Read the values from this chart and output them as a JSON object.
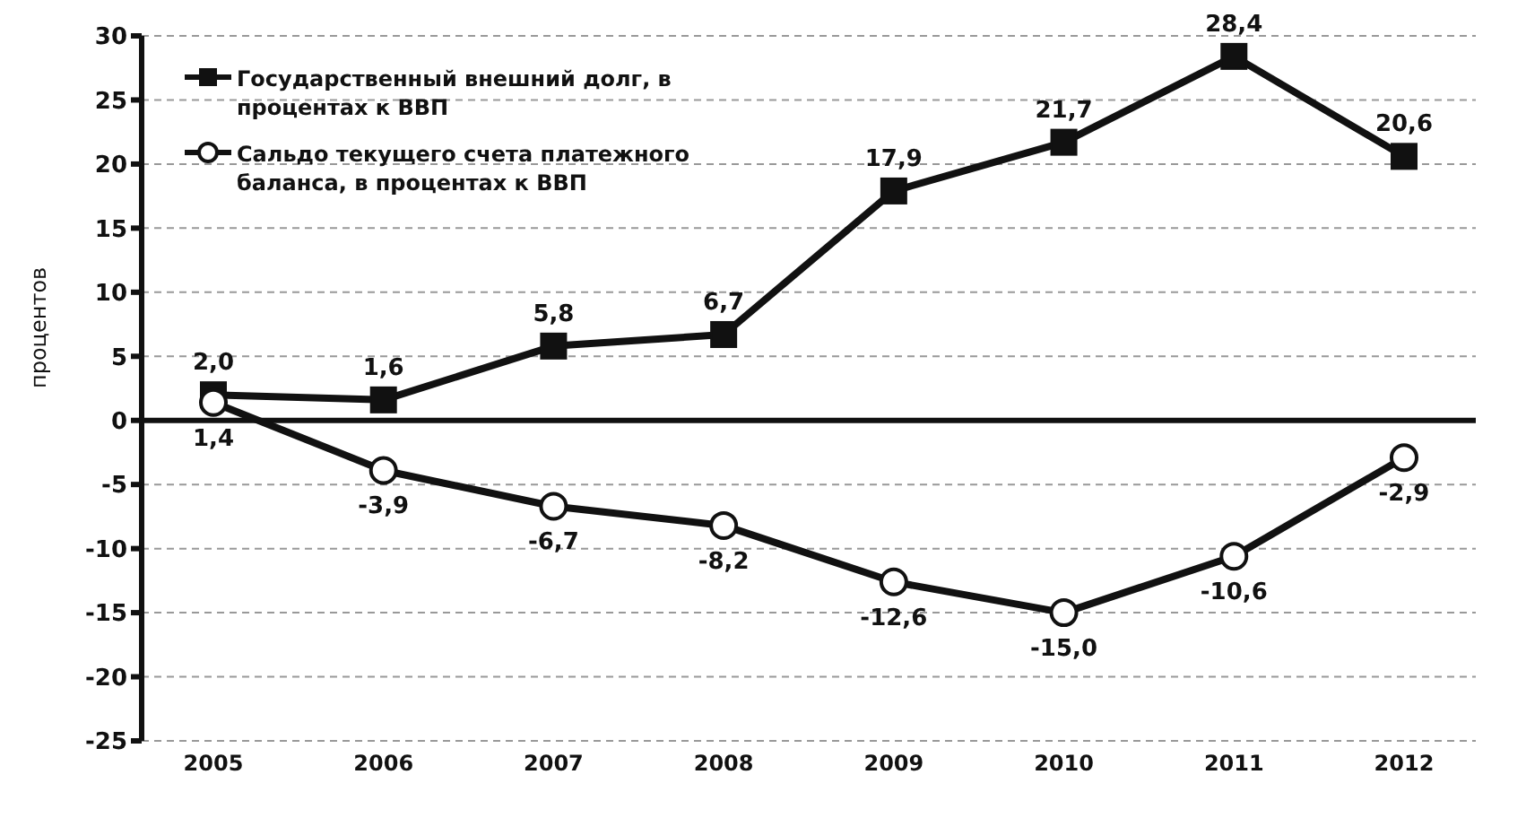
{
  "chart_data": {
    "type": "line",
    "ylabel": "процентов",
    "categories": [
      "2005",
      "2006",
      "2007",
      "2008",
      "2009",
      "2010",
      "2011",
      "2012"
    ],
    "series": [
      {
        "name": "Государственный внешний долг, в процентах к ВВП",
        "color": "#111111",
        "marker": "square",
        "values": [
          2.0,
          1.6,
          5.8,
          6.7,
          17.9,
          21.7,
          28.4,
          20.6
        ],
        "value_labels": [
          "2,0",
          "1,6",
          "5,8",
          "6,7",
          "17,9",
          "21,7",
          "28,4",
          "20,6"
        ]
      },
      {
        "name": "Сальдо текущего счета платежного баланса, в процентах к ВВП",
        "color": "#111111",
        "marker": "circle",
        "values": [
          1.4,
          -3.9,
          -6.7,
          -8.2,
          -12.6,
          -15.0,
          -10.6,
          -2.9
        ],
        "value_labels": [
          "1,4",
          "-3,9",
          "-6,7",
          "-8,2",
          "-12,6",
          "-15,0",
          "-10,6",
          "-2,9"
        ]
      }
    ],
    "ylim": [
      -25,
      30
    ],
    "yticks": [
      -25,
      -20,
      -15,
      -10,
      -5,
      0,
      5,
      10,
      15,
      20,
      25,
      30
    ],
    "grid": "y",
    "legend": "top left",
    "line_style": "solid"
  }
}
